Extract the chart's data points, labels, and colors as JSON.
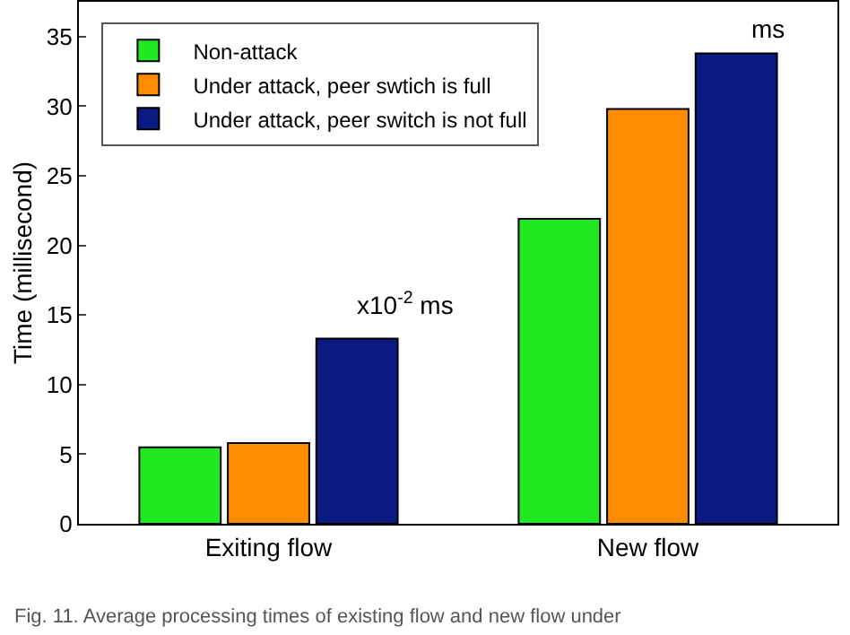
{
  "chart_data": {
    "type": "bar",
    "ylabel": "Time (millisecond)",
    "categories": [
      "Exiting flow",
      "New flow"
    ],
    "series": [
      {
        "name": "Non-attack",
        "color": "#22e822",
        "values": [
          5.5,
          21.9
        ]
      },
      {
        "name": "Under attack, peer swtich is full",
        "color": "#ff8c00",
        "values": [
          5.8,
          29.8
        ]
      },
      {
        "name": "Under attack, peer switch is not full",
        "color": "#0a1a80",
        "values": [
          13.3,
          33.8
        ]
      }
    ],
    "ylim": [
      0,
      37.5
    ],
    "yticks": [
      0,
      5,
      10,
      15,
      20,
      25,
      30,
      35
    ],
    "grid": false,
    "legend": "top left",
    "annotations": [
      "x10$^{-2}$ ms",
      "ms",
      "Fig. 11. Average processing times of existing flow and new flow under"
    ]
  }
}
